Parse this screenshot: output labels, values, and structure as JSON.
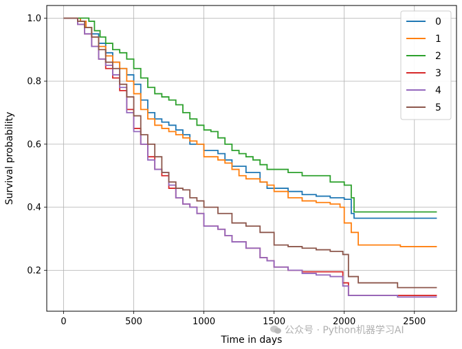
{
  "watermark": "公众号 · Python机器学习AI",
  "chart_data": {
    "type": "line",
    "step": true,
    "xlabel": "Time in days",
    "ylabel": "Survival probability",
    "xlim": [
      -120,
      2800
    ],
    "ylim": [
      0.07,
      1.04
    ],
    "xticks": [
      0,
      500,
      1000,
      1500,
      2000,
      2500
    ],
    "yticks": [
      0.2,
      0.4,
      0.6,
      0.8,
      1.0
    ],
    "grid": true,
    "legend_position": "top-right",
    "series": [
      {
        "name": "0",
        "color": "#1f77b4",
        "x": [
          0,
          120,
          160,
          200,
          250,
          300,
          350,
          400,
          450,
          500,
          550,
          600,
          650,
          700,
          750,
          800,
          850,
          900,
          1000,
          1100,
          1150,
          1200,
          1300,
          1400,
          1450,
          1500,
          1600,
          1700,
          1800,
          1900,
          2000,
          2050,
          2070,
          2660
        ],
        "y": [
          1.0,
          0.99,
          0.97,
          0.95,
          0.92,
          0.89,
          0.86,
          0.84,
          0.82,
          0.79,
          0.74,
          0.7,
          0.68,
          0.67,
          0.66,
          0.645,
          0.63,
          0.6,
          0.58,
          0.57,
          0.55,
          0.53,
          0.51,
          0.48,
          0.46,
          0.46,
          0.45,
          0.44,
          0.435,
          0.43,
          0.425,
          0.38,
          0.365,
          0.365
        ]
      },
      {
        "name": "1",
        "color": "#ff7f0e",
        "x": [
          0,
          120,
          160,
          200,
          250,
          300,
          350,
          400,
          450,
          500,
          550,
          600,
          650,
          700,
          750,
          800,
          850,
          900,
          950,
          1000,
          1100,
          1150,
          1200,
          1250,
          1300,
          1400,
          1450,
          1500,
          1600,
          1700,
          1800,
          1900,
          1970,
          2000,
          2050,
          2100,
          2400,
          2660
        ],
        "y": [
          1.0,
          0.99,
          0.97,
          0.94,
          0.91,
          0.88,
          0.86,
          0.84,
          0.8,
          0.76,
          0.71,
          0.68,
          0.66,
          0.65,
          0.64,
          0.63,
          0.62,
          0.61,
          0.6,
          0.56,
          0.55,
          0.54,
          0.52,
          0.5,
          0.49,
          0.48,
          0.47,
          0.45,
          0.43,
          0.42,
          0.415,
          0.41,
          0.4,
          0.35,
          0.32,
          0.28,
          0.275,
          0.275
        ]
      },
      {
        "name": "2",
        "color": "#2ca02c",
        "x": [
          0,
          180,
          220,
          260,
          300,
          350,
          400,
          450,
          500,
          550,
          600,
          650,
          700,
          750,
          800,
          850,
          900,
          950,
          1000,
          1050,
          1100,
          1150,
          1200,
          1250,
          1300,
          1350,
          1400,
          1450,
          1500,
          1600,
          1700,
          1800,
          1900,
          2000,
          2050,
          2070,
          2660
        ],
        "y": [
          1.0,
          0.99,
          0.96,
          0.94,
          0.92,
          0.9,
          0.89,
          0.87,
          0.84,
          0.81,
          0.78,
          0.76,
          0.75,
          0.74,
          0.725,
          0.7,
          0.68,
          0.66,
          0.645,
          0.64,
          0.62,
          0.6,
          0.58,
          0.57,
          0.56,
          0.55,
          0.535,
          0.52,
          0.52,
          0.51,
          0.5,
          0.5,
          0.48,
          0.47,
          0.43,
          0.385,
          0.385
        ]
      },
      {
        "name": "3",
        "color": "#d62728",
        "x": [
          0,
          100,
          150,
          200,
          250,
          300,
          350,
          400,
          450,
          500,
          550,
          600,
          650,
          700,
          750,
          800,
          850,
          900,
          950,
          1000,
          1100,
          1150,
          1200,
          1300,
          1400,
          1450,
          1500,
          1600,
          1700,
          1800,
          1900,
          1990,
          2030,
          2660
        ],
        "y": [
          1.0,
          0.98,
          0.95,
          0.91,
          0.87,
          0.84,
          0.81,
          0.77,
          0.71,
          0.65,
          0.6,
          0.56,
          0.52,
          0.5,
          0.46,
          0.43,
          0.41,
          0.4,
          0.38,
          0.34,
          0.33,
          0.31,
          0.29,
          0.27,
          0.24,
          0.23,
          0.21,
          0.2,
          0.195,
          0.195,
          0.195,
          0.16,
          0.12,
          0.12
        ]
      },
      {
        "name": "4",
        "color": "#9467bd",
        "x": [
          0,
          100,
          150,
          200,
          250,
          300,
          350,
          400,
          450,
          500,
          550,
          600,
          650,
          700,
          750,
          800,
          850,
          900,
          950,
          1000,
          1100,
          1150,
          1200,
          1300,
          1400,
          1450,
          1500,
          1600,
          1700,
          1800,
          1900,
          1990,
          2030,
          2380,
          2660
        ],
        "y": [
          1.0,
          0.98,
          0.95,
          0.91,
          0.87,
          0.85,
          0.82,
          0.78,
          0.7,
          0.64,
          0.6,
          0.55,
          0.52,
          0.51,
          0.47,
          0.43,
          0.41,
          0.4,
          0.38,
          0.34,
          0.33,
          0.31,
          0.29,
          0.27,
          0.24,
          0.23,
          0.21,
          0.2,
          0.19,
          0.185,
          0.18,
          0.15,
          0.12,
          0.115,
          0.115
        ]
      },
      {
        "name": "5",
        "color": "#8c564b",
        "x": [
          0,
          100,
          150,
          200,
          250,
          300,
          350,
          400,
          450,
          500,
          550,
          600,
          650,
          700,
          750,
          800,
          850,
          900,
          950,
          1000,
          1100,
          1200,
          1300,
          1400,
          1500,
          1600,
          1700,
          1800,
          1900,
          1990,
          2030,
          2100,
          2380,
          2660
        ],
        "y": [
          1.0,
          0.99,
          0.97,
          0.94,
          0.9,
          0.86,
          0.84,
          0.79,
          0.75,
          0.69,
          0.63,
          0.6,
          0.56,
          0.51,
          0.48,
          0.46,
          0.455,
          0.43,
          0.42,
          0.4,
          0.38,
          0.35,
          0.34,
          0.32,
          0.28,
          0.275,
          0.27,
          0.265,
          0.26,
          0.25,
          0.18,
          0.16,
          0.145,
          0.145
        ]
      }
    ]
  }
}
